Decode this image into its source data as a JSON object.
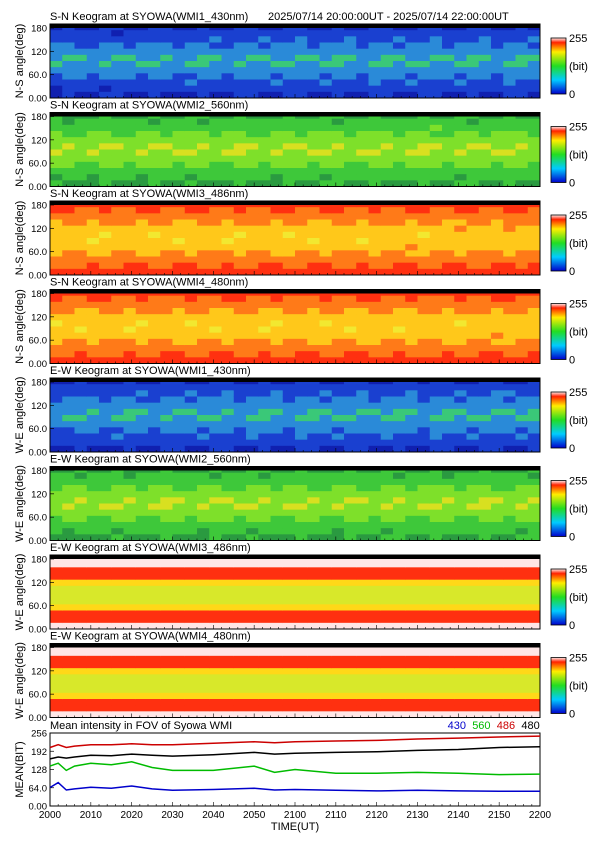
{
  "header": {
    "time_range": "2025/07/14 20:00:00UT - 2025/07/14 22:00:00UT"
  },
  "colorbar": {
    "max_label": "255",
    "unit_label": "(bit)",
    "min_label": "0"
  },
  "chart_data": [
    {
      "type": "heatmap",
      "title": "S-N Keogram at SYOWA(WMI1_430nm)",
      "ylabel": "N-S angle(deg)",
      "yticks": [
        "180",
        "120",
        "60.0",
        "0.00"
      ],
      "ylim": [
        0,
        180
      ],
      "xlim_ut": [
        "2000",
        "2200"
      ],
      "colorbar": [
        0,
        255
      ],
      "palette": "blue",
      "profile_x_min": [
        0,
        30,
        60,
        90,
        120
      ],
      "profile_value": [
        120,
        95,
        70,
        60,
        55
      ]
    },
    {
      "type": "heatmap",
      "title": "S-N Keogram at SYOWA(WMI2_560nm)",
      "ylabel": "N-S angle(deg)",
      "yticks": [
        "180",
        "120",
        "60.0",
        "0.00"
      ],
      "ylim": [
        0,
        180
      ],
      "xlim_ut": [
        "2000",
        "2200"
      ],
      "colorbar": [
        0,
        255
      ],
      "palette": "green",
      "profile_x_min": [
        0,
        30,
        60,
        90,
        120
      ],
      "profile_value": [
        140,
        120,
        105,
        100,
        100
      ]
    },
    {
      "type": "heatmap",
      "title": "S-N Keogram at SYOWA(WMI3_486nm)",
      "ylabel": "N-S angle(deg)",
      "yticks": [
        "180",
        "120",
        "60.0",
        "0.00"
      ],
      "ylim": [
        0,
        180
      ],
      "xlim_ut": [
        "2000",
        "2200"
      ],
      "colorbar": [
        0,
        255
      ],
      "palette": "yellow-red",
      "profile_x_min": [
        0,
        30,
        60,
        90,
        120
      ],
      "profile_value": [
        190,
        195,
        200,
        205,
        220
      ]
    },
    {
      "type": "heatmap",
      "title": "S-N Keogram at SYOWA(WMI4_480nm)",
      "ylabel": "N-S angle(deg)",
      "yticks": [
        "180",
        "120",
        "60.0",
        "0.00"
      ],
      "ylim": [
        0,
        180
      ],
      "xlim_ut": [
        "2000",
        "2200"
      ],
      "colorbar": [
        0,
        255
      ],
      "palette": "yellow-red",
      "profile_x_min": [
        0,
        30,
        60,
        90,
        120
      ],
      "profile_value": [
        175,
        180,
        185,
        190,
        215
      ]
    },
    {
      "type": "heatmap",
      "title": "E-W Keogram at SYOWA(WMI1_430nm)",
      "ylabel": "W-E angle(deg)",
      "yticks": [
        "180",
        "120",
        "60.0",
        "0.00"
      ],
      "ylim": [
        0,
        180
      ],
      "xlim_ut": [
        "2000",
        "2200"
      ],
      "colorbar": [
        0,
        255
      ],
      "palette": "blue",
      "profile_x_min": [
        0,
        30,
        60,
        90,
        120
      ],
      "profile_value": [
        110,
        80,
        65,
        55,
        50
      ]
    },
    {
      "type": "heatmap",
      "title": "E-W Keogram at SYOWA(WMI2_560nm)",
      "ylabel": "W-E angle(deg)",
      "yticks": [
        "180",
        "120",
        "60.0",
        "0.00"
      ],
      "ylim": [
        0,
        180
      ],
      "xlim_ut": [
        "2000",
        "2200"
      ],
      "colorbar": [
        0,
        255
      ],
      "palette": "green",
      "profile_x_min": [
        0,
        30,
        60,
        90,
        120
      ],
      "profile_value": [
        150,
        125,
        115,
        110,
        110
      ]
    },
    {
      "type": "heatmap",
      "title": "E-W Keogram at SYOWA(WMI3_486nm)",
      "ylabel": "W-E angle(deg)",
      "yticks": [
        "180",
        "120",
        "60.0",
        "0.00"
      ],
      "ylim": [
        0,
        180
      ],
      "xlim_ut": [
        "2000",
        "2200"
      ],
      "colorbar": [
        0,
        255
      ],
      "palette": "band",
      "profile_x_min": [
        0,
        30,
        60,
        90,
        120
      ],
      "profile_value": [
        200,
        205,
        205,
        210,
        215
      ]
    },
    {
      "type": "heatmap",
      "title": "E-W Keogram at SYOWA(WMI4_480nm)",
      "ylabel": "W-E angle(deg)",
      "yticks": [
        "180",
        "120",
        "60.0",
        "0.00"
      ],
      "ylim": [
        0,
        180
      ],
      "xlim_ut": [
        "2000",
        "2200"
      ],
      "colorbar": [
        0,
        255
      ],
      "palette": "band",
      "profile_x_min": [
        0,
        30,
        60,
        90,
        120
      ],
      "profile_value": [
        195,
        200,
        205,
        205,
        215
      ]
    },
    {
      "type": "line",
      "title": "Mean intensity in FOV of Syowa WMI",
      "xlabel": "TIME(UT)",
      "ylabel": "MEAN(BIT)",
      "ylim": [
        0,
        256
      ],
      "yticks": [
        "256",
        "192",
        "128",
        "64.0",
        "0.00"
      ],
      "xticks": [
        "2000",
        "2010",
        "2020",
        "2030",
        "2040",
        "2050",
        "2100",
        "2110",
        "2120",
        "2130",
        "2140",
        "2150",
        "2200"
      ],
      "x_minutes": [
        0,
        2,
        4,
        6,
        10,
        15,
        20,
        25,
        30,
        40,
        50,
        55,
        60,
        70,
        80,
        90,
        100,
        110,
        120
      ],
      "series": [
        {
          "name": "430",
          "color": "#0000cc",
          "values": [
            65,
            82,
            56,
            60,
            66,
            62,
            70,
            60,
            55,
            58,
            62,
            56,
            58,
            55,
            53,
            55,
            53,
            52,
            52
          ]
        },
        {
          "name": "560",
          "color": "#00bb00",
          "values": [
            140,
            150,
            125,
            140,
            150,
            145,
            155,
            135,
            125,
            125,
            140,
            118,
            128,
            115,
            115,
            118,
            115,
            110,
            112
          ]
        },
        {
          "name": "486",
          "color": "#cc0000",
          "values": [
            205,
            215,
            205,
            210,
            215,
            215,
            218,
            215,
            215,
            220,
            225,
            222,
            225,
            228,
            230,
            235,
            238,
            242,
            245
          ]
        },
        {
          "name": "480",
          "color": "#000000",
          "values": [
            165,
            172,
            168,
            172,
            178,
            176,
            182,
            178,
            175,
            180,
            188,
            182,
            185,
            188,
            190,
            195,
            198,
            205,
            208
          ]
        }
      ]
    }
  ]
}
